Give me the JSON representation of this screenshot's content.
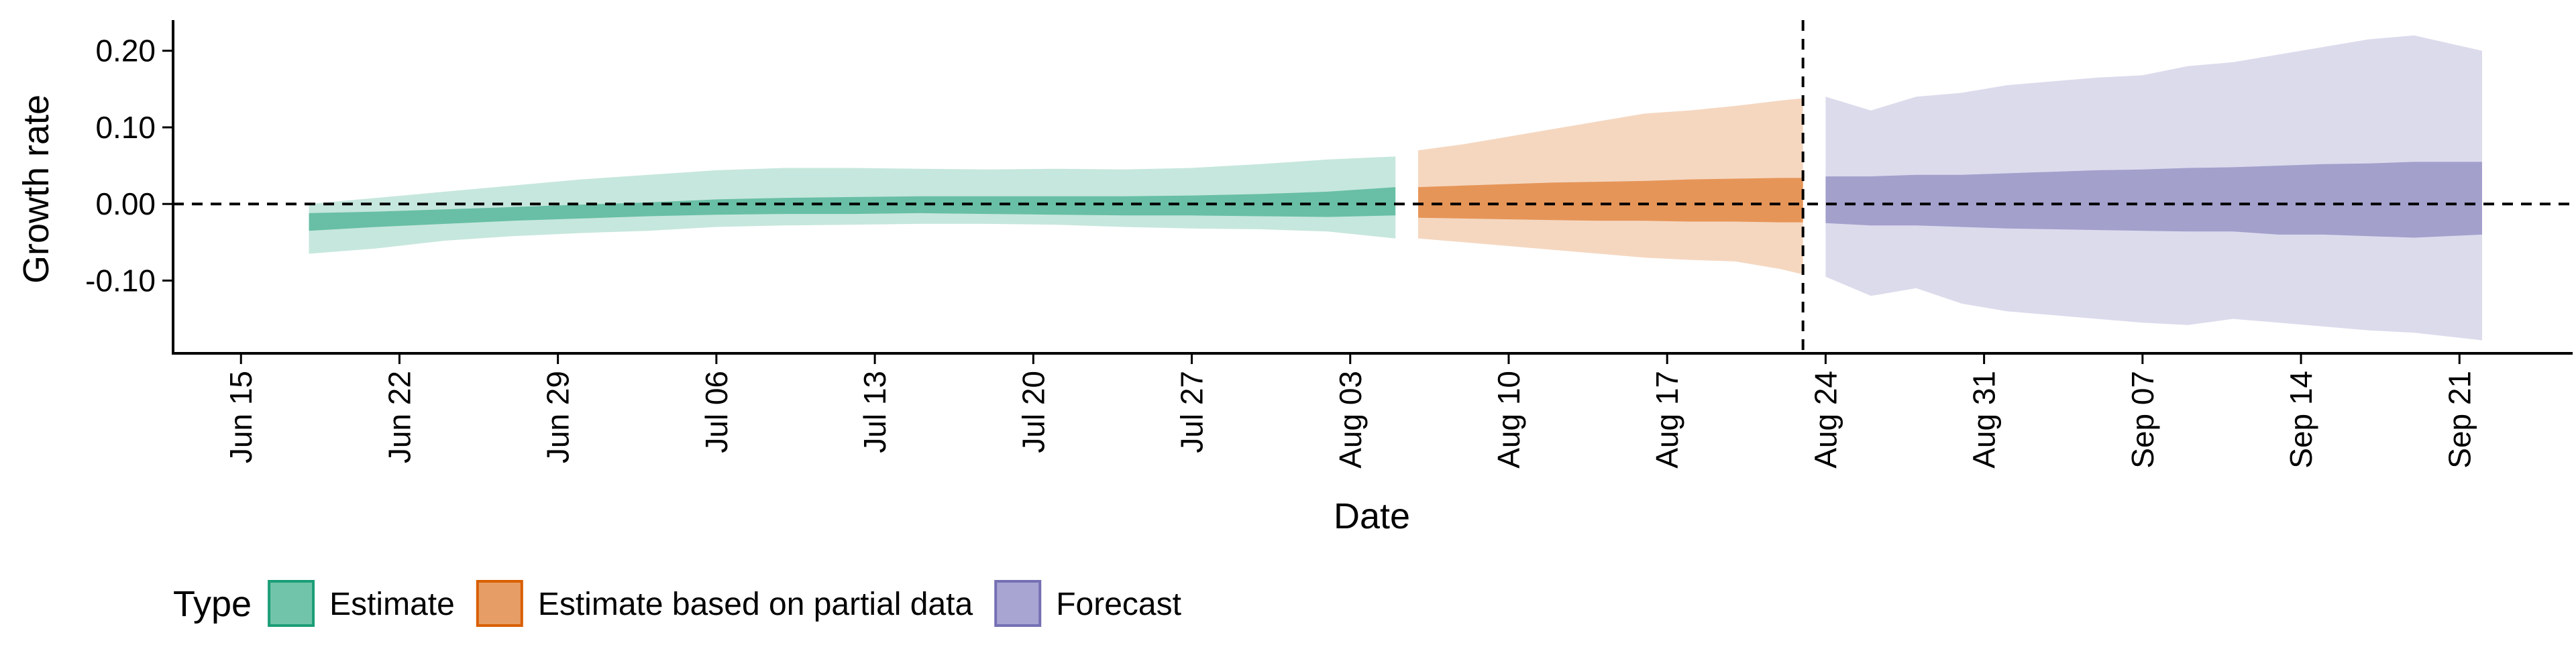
{
  "chart_data": {
    "type": "area",
    "xlabel": "Date",
    "ylabel": "Growth rate",
    "x_axis_type": "date",
    "xlim": [
      "2020-06-12",
      "2020-09-26"
    ],
    "ylim": [
      -0.195,
      0.24
    ],
    "x_tick_dates": [
      "2020-06-15",
      "2020-06-22",
      "2020-06-29",
      "2020-07-06",
      "2020-07-13",
      "2020-07-20",
      "2020-07-27",
      "2020-08-03",
      "2020-08-10",
      "2020-08-17",
      "2020-08-24",
      "2020-08-31",
      "2020-09-07",
      "2020-09-14",
      "2020-09-21"
    ],
    "x_tick_labels": [
      "Jun 15",
      "Jun 22",
      "Jun 29",
      "Jul 06",
      "Jul 13",
      "Jul 20",
      "Jul 27",
      "Aug 03",
      "Aug 10",
      "Aug 17",
      "Aug 24",
      "Aug 31",
      "Sep 07",
      "Sep 14",
      "Sep 21"
    ],
    "y_ticks": [
      -0.1,
      0.0,
      0.1,
      0.2
    ],
    "y_tick_labels": [
      "-0.10",
      "0.00",
      "0.10",
      "0.20"
    ],
    "hline_y": 0.0,
    "vline_date": "2020-08-23",
    "legend": {
      "title": "Type",
      "position": "bottom",
      "items": [
        {
          "label": "Estimate",
          "fill": "#71c4a9",
          "border": "#1b9e77"
        },
        {
          "label": "Estimate based on partial data",
          "fill": "#e69e66",
          "border": "#d95f02"
        },
        {
          "label": "Forecast",
          "fill": "#a9a5d3",
          "border": "#7570b3"
        }
      ]
    },
    "series": [
      {
        "name": "Estimate",
        "outer_color": "#1b9e77",
        "inner_color": "#1b9e77",
        "x": [
          "2020-06-18",
          "2020-06-21",
          "2020-06-24",
          "2020-06-27",
          "2020-06-30",
          "2020-07-03",
          "2020-07-06",
          "2020-07-09",
          "2020-07-12",
          "2020-07-15",
          "2020-07-18",
          "2020-07-21",
          "2020-07-24",
          "2020-07-27",
          "2020-07-30",
          "2020-08-02",
          "2020-08-05"
        ],
        "outer_lower": [
          -0.065,
          -0.058,
          -0.048,
          -0.042,
          -0.038,
          -0.035,
          -0.03,
          -0.028,
          -0.027,
          -0.026,
          -0.026,
          -0.027,
          -0.03,
          -0.032,
          -0.033,
          -0.036,
          -0.045
        ],
        "outer_upper": [
          0.0,
          0.008,
          0.016,
          0.024,
          0.032,
          0.038,
          0.044,
          0.047,
          0.047,
          0.046,
          0.045,
          0.046,
          0.045,
          0.047,
          0.052,
          0.058,
          0.062
        ],
        "inner_lower": [
          -0.035,
          -0.03,
          -0.026,
          -0.022,
          -0.019,
          -0.016,
          -0.014,
          -0.013,
          -0.013,
          -0.012,
          -0.013,
          -0.014,
          -0.015,
          -0.015,
          -0.016,
          -0.017,
          -0.015
        ],
        "inner_upper": [
          -0.012,
          -0.01,
          -0.007,
          -0.004,
          -0.001,
          0.002,
          0.006,
          0.008,
          0.009,
          0.01,
          0.01,
          0.01,
          0.01,
          0.011,
          0.013,
          0.016,
          0.022
        ]
      },
      {
        "name": "Estimate based on partial data",
        "outer_color": "#d95f02",
        "inner_color": "#d95f02",
        "x": [
          "2020-08-06",
          "2020-08-08",
          "2020-08-10",
          "2020-08-12",
          "2020-08-14",
          "2020-08-16",
          "2020-08-18",
          "2020-08-20",
          "2020-08-22",
          "2020-08-23"
        ],
        "outer_lower": [
          -0.045,
          -0.05,
          -0.055,
          -0.06,
          -0.065,
          -0.07,
          -0.073,
          -0.075,
          -0.085,
          -0.092
        ],
        "outer_upper": [
          0.07,
          0.078,
          0.088,
          0.098,
          0.108,
          0.118,
          0.122,
          0.128,
          0.135,
          0.138
        ],
        "inner_lower": [
          -0.018,
          -0.019,
          -0.02,
          -0.021,
          -0.022,
          -0.022,
          -0.023,
          -0.023,
          -0.024,
          -0.024
        ],
        "inner_upper": [
          0.022,
          0.024,
          0.026,
          0.028,
          0.029,
          0.03,
          0.032,
          0.033,
          0.034,
          0.034
        ]
      },
      {
        "name": "Forecast",
        "outer_color": "#7570b3",
        "inner_color": "#7570b3",
        "x": [
          "2020-08-24",
          "2020-08-26",
          "2020-08-28",
          "2020-08-30",
          "2020-09-01",
          "2020-09-03",
          "2020-09-05",
          "2020-09-07",
          "2020-09-09",
          "2020-09-11",
          "2020-09-13",
          "2020-09-15",
          "2020-09-17",
          "2020-09-19",
          "2020-09-22"
        ],
        "outer_lower": [
          -0.095,
          -0.12,
          -0.11,
          -0.13,
          -0.14,
          -0.145,
          -0.15,
          -0.155,
          -0.158,
          -0.15,
          -0.155,
          -0.16,
          -0.165,
          -0.168,
          -0.178
        ],
        "outer_upper": [
          0.14,
          0.122,
          0.14,
          0.145,
          0.155,
          0.16,
          0.165,
          0.168,
          0.18,
          0.185,
          0.195,
          0.205,
          0.215,
          0.22,
          0.2
        ],
        "inner_lower": [
          -0.025,
          -0.028,
          -0.028,
          -0.03,
          -0.032,
          -0.033,
          -0.034,
          -0.035,
          -0.036,
          -0.036,
          -0.04,
          -0.04,
          -0.042,
          -0.044,
          -0.04
        ],
        "inner_upper": [
          0.036,
          0.036,
          0.038,
          0.038,
          0.04,
          0.042,
          0.044,
          0.045,
          0.047,
          0.048,
          0.05,
          0.052,
          0.053,
          0.055,
          0.055
        ]
      }
    ]
  }
}
